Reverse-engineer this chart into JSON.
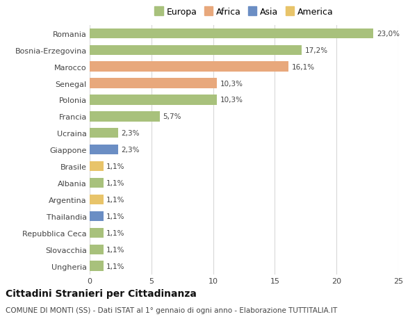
{
  "categories": [
    "Ungheria",
    "Slovacchia",
    "Repubblica Ceca",
    "Thailandia",
    "Argentina",
    "Albania",
    "Brasile",
    "Giappone",
    "Ucraina",
    "Francia",
    "Polonia",
    "Senegal",
    "Marocco",
    "Bosnia-Erzegovina",
    "Romania"
  ],
  "values": [
    1.1,
    1.1,
    1.1,
    1.1,
    1.1,
    1.1,
    1.1,
    2.3,
    2.3,
    5.7,
    10.3,
    10.3,
    16.1,
    17.2,
    23.0
  ],
  "labels": [
    "1,1%",
    "1,1%",
    "1,1%",
    "1,1%",
    "1,1%",
    "1,1%",
    "1,1%",
    "2,3%",
    "2,3%",
    "5,7%",
    "10,3%",
    "10,3%",
    "16,1%",
    "17,2%",
    "23,0%"
  ],
  "colors": [
    "#a8c17c",
    "#a8c17c",
    "#a8c17c",
    "#6b8ec4",
    "#e8c46a",
    "#a8c17c",
    "#e8c46a",
    "#6b8ec4",
    "#a8c17c",
    "#a8c17c",
    "#a8c17c",
    "#e8a87c",
    "#e8a87c",
    "#a8c17c",
    "#a8c17c"
  ],
  "legend_labels": [
    "Europa",
    "Africa",
    "Asia",
    "America"
  ],
  "legend_colors": [
    "#a8c17c",
    "#e8a87c",
    "#6b8ec4",
    "#e8c46a"
  ],
  "title": "Cittadini Stranieri per Cittadinanza",
  "subtitle": "COMUNE DI MONTI (SS) - Dati ISTAT al 1° gennaio di ogni anno - Elaborazione TUTTITALIA.IT",
  "xlim": [
    0,
    25
  ],
  "xticks": [
    0,
    5,
    10,
    15,
    20,
    25
  ],
  "bg_color": "#ffffff",
  "bar_height": 0.6,
  "grid_color": "#d8d8d8",
  "title_fontsize": 10,
  "subtitle_fontsize": 7.5,
  "label_fontsize": 7.5,
  "tick_fontsize": 8,
  "legend_fontsize": 9
}
